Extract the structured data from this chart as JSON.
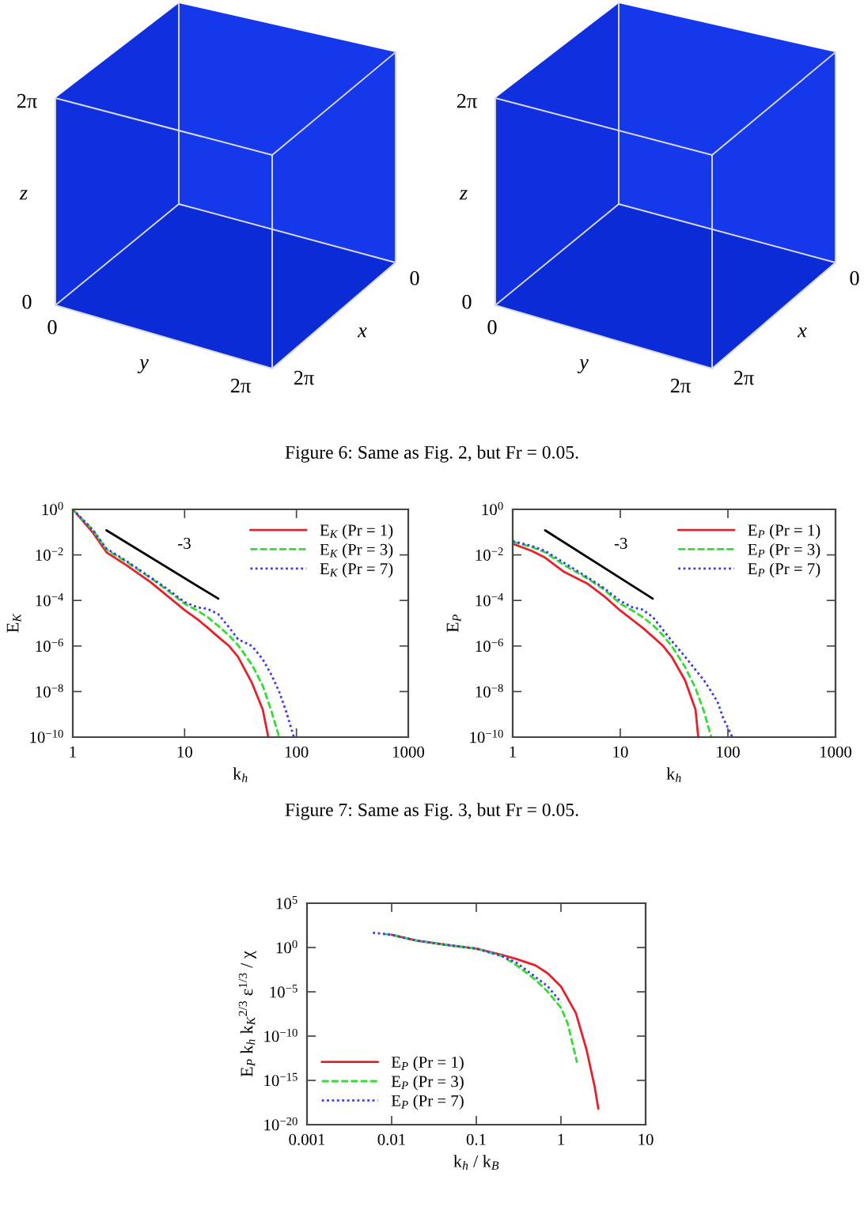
{
  "chart_data": [
    {
      "type": "other",
      "annotations": [
        "2π",
        "z",
        "0",
        "0",
        "y",
        "2π",
        "2π",
        "x",
        "0"
      ]
    },
    {
      "type": "other",
      "annotations": [
        "2π",
        "z",
        "0",
        "0",
        "y",
        "2π",
        "2π",
        "x",
        "0",
        "Figure 6: Same as Fig. 2, but Fr = 0.05."
      ]
    },
    {
      "type": "line",
      "log": "xy",
      "xlabel": "k$_{h}$",
      "ylabel": "E$_{K}$",
      "legend": "top right",
      "xlim": [
        1,
        1000
      ],
      "xticks": [
        1,
        10,
        100,
        1000
      ],
      "ylim": [
        1e-10,
        1
      ],
      "yticks": [
        {
          "value": 1,
          "label": "10$^{0}$"
        },
        {
          "value": 0.01,
          "label": "10$^{−2}$"
        },
        {
          "value": 0.0001,
          "label": "10$^{−4}$"
        },
        {
          "value": 1e-06,
          "label": "10$^{−6}$"
        },
        {
          "value": 1e-08,
          "label": "10$^{−8}$"
        },
        {
          "value": 1e-10,
          "label": "10$^{−10}$"
        }
      ],
      "series": [
        {
          "name": "E$_{K}$ (Pr = 1)",
          "color": "#e8202a",
          "line_style": "solid",
          "x": [
            1,
            1.5,
            2,
            3,
            5,
            7,
            10,
            13,
            16,
            20,
            25,
            30,
            40,
            50,
            56
          ],
          "values": [
            1,
            0.1,
            0.013,
            0.0036,
            0.00062,
            0.00016,
            3.8e-05,
            1.5e-05,
            6.5e-06,
            2.5e-06,
            1e-06,
            3.4e-07,
            2.4e-08,
            1.6e-09,
            1e-10
          ]
        },
        {
          "name": "E$_{K}$ (Pr = 3)",
          "color": "#33dd33",
          "line_style": "dashed",
          "x": [
            1,
            1.5,
            2,
            3,
            5,
            7,
            10,
            13,
            16,
            20,
            25,
            30,
            40,
            50,
            60,
            70
          ],
          "values": [
            1,
            0.13,
            0.017,
            0.005,
            0.00095,
            0.00028,
            7.2e-05,
            3.6e-05,
            1.9e-05,
            7.6e-06,
            2.9e-06,
            1.1e-06,
            1.5e-07,
            1.8e-08,
            1.3e-09,
            1e-10
          ]
        },
        {
          "name": "E$_{K}$ (Pr = 7)",
          "color": "#3a3aee",
          "line_style": "dotted",
          "x": [
            1,
            1.5,
            2,
            3,
            5,
            7,
            10,
            13,
            16,
            20,
            25,
            30,
            40,
            50,
            60,
            70,
            80,
            95
          ],
          "values": [
            1,
            0.13,
            0.019,
            0.0055,
            0.001,
            0.00032,
            8.5e-05,
            5e-05,
            4.3e-05,
            2.5e-05,
            6.5e-06,
            2e-06,
            1e-06,
            2.6e-07,
            5.2e-08,
            1e-08,
            1.6e-09,
            1e-10
          ]
        },
        {
          "color": "#000000",
          "line_style": "solid",
          "x": [
            2,
            20
          ],
          "values": [
            0.12,
            0.00012
          ]
        }
      ],
      "annotations": [
        "-3",
        "Figure 7: Same as Fig. 3, but Fr = 0.05."
      ]
    },
    {
      "type": "line",
      "log": "xy",
      "xlabel": "k$_{h}$",
      "ylabel": "E$_{P}$",
      "legend": "top right",
      "xlim": [
        1,
        1000
      ],
      "xticks": [
        1,
        10,
        100,
        1000
      ],
      "ylim": [
        1e-10,
        1
      ],
      "yticks": [
        {
          "value": 1,
          "label": "10$^{0}$"
        },
        {
          "value": 0.01,
          "label": "10$^{−2}$"
        },
        {
          "value": 0.0001,
          "label": "10$^{−4}$"
        },
        {
          "value": 1e-06,
          "label": "10$^{−6}$"
        },
        {
          "value": 1e-08,
          "label": "10$^{−8}$"
        },
        {
          "value": 1e-10,
          "label": "10$^{−10}$"
        }
      ],
      "series": [
        {
          "name": "E$_{P}$ (Pr = 1)",
          "color": "#e8202a",
          "line_style": "solid",
          "x": [
            1,
            1.5,
            2,
            3,
            5,
            7,
            10,
            13,
            16,
            20,
            25,
            30,
            40,
            50,
            53
          ],
          "values": [
            0.031,
            0.015,
            0.0076,
            0.0018,
            0.00053,
            0.00016,
            3.6e-05,
            1.4e-05,
            6.5e-06,
            2.6e-06,
            1e-06,
            3.4e-07,
            3.1e-08,
            1.6e-09,
            1e-10
          ]
        },
        {
          "name": "E$_{P}$ (Pr = 3)",
          "color": "#33dd33",
          "line_style": "dashed",
          "x": [
            1,
            1.5,
            2,
            3,
            5,
            7,
            10,
            13,
            16,
            20,
            25,
            30,
            40,
            50,
            60,
            70
          ],
          "values": [
            0.038,
            0.022,
            0.013,
            0.0036,
            0.0009,
            0.00031,
            7.2e-05,
            3.6e-05,
            1.9e-05,
            8.5e-06,
            2.9e-06,
            1e-06,
            1.2e-07,
            1.4e-08,
            1.3e-09,
            1e-10
          ]
        },
        {
          "name": "E$_{P}$ (Pr = 7)",
          "color": "#3a3aee",
          "line_style": "dotted",
          "x": [
            1,
            1.5,
            2,
            3,
            5,
            7,
            10,
            13,
            16,
            20,
            25,
            30,
            40,
            50,
            60,
            70,
            80,
            90,
            110
          ],
          "values": [
            0.04,
            0.025,
            0.015,
            0.0045,
            0.001,
            0.00036,
            9.5e-05,
            5e-05,
            4e-05,
            1.9e-05,
            5e-06,
            1.7e-06,
            3.4e-07,
            9e-08,
            3.1e-08,
            1e-08,
            3.6e-09,
            7.2e-10,
            1e-10
          ]
        },
        {
          "color": "#000000",
          "line_style": "solid",
          "x": [
            2,
            20
          ],
          "values": [
            0.12,
            0.00012
          ]
        }
      ],
      "annotations": [
        "-3"
      ]
    },
    {
      "type": "line",
      "log": "xy",
      "xlabel": "k$_{h}$ / k$_{B}$",
      "ylabel": "E$_{P}$ k$_{h}$ k$_{K}$$^{2/3}$ ε$^{1/3}$ / χ",
      "legend": "bottom left",
      "xlim": [
        0.001,
        10
      ],
      "xticks": [
        0.001,
        0.01,
        0.1,
        1,
        10
      ],
      "ylim": [
        1e-20,
        100000
      ],
      "yticks": [
        {
          "value": 100000,
          "label": "10$^{5}$"
        },
        {
          "value": 1,
          "label": "10$^{0}$"
        },
        {
          "value": 1e-05,
          "label": "10$^{−5}$"
        },
        {
          "value": 1e-10,
          "label": "10$^{−10}$"
        },
        {
          "value": 1e-15,
          "label": "10$^{−15}$"
        },
        {
          "value": 1e-20,
          "label": "10$^{−20}$"
        }
      ],
      "series": [
        {
          "name": "E$_{P}$ (Pr = 1)",
          "color": "#e8202a",
          "line_style": "solid",
          "x": [
            0.01,
            0.02,
            0.05,
            0.1,
            0.2,
            0.3,
            0.5,
            0.7,
            1,
            1.5,
            2,
            2.5,
            2.76
          ],
          "values": [
            27,
            5.9,
            1.7,
            0.76,
            0.15,
            0.049,
            0.0095,
            0.0012,
            4e-05,
            4e-08,
            3.2e-12,
            2e-16,
            6.3e-19
          ]
        },
        {
          "name": "E$_{P}$ (Pr = 3)",
          "color": "#33dd33",
          "line_style": "dashed",
          "x": [
            0.008,
            0.01,
            0.02,
            0.05,
            0.1,
            0.2,
            0.3,
            0.5,
            0.7,
            1,
            1.2,
            1.55
          ],
          "values": [
            35,
            27,
            5.9,
            1.7,
            0.76,
            0.11,
            0.0095,
            0.00023,
            1e-05,
            1.6e-07,
            2.7e-09,
            1e-13
          ]
        },
        {
          "name": "E$_{P}$ (Pr = 7)",
          "color": "#3a3aee",
          "line_style": "dotted",
          "x": [
            0.006,
            0.01,
            0.02,
            0.05,
            0.1,
            0.2,
            0.3,
            0.5,
            0.7,
            1
          ],
          "values": [
            47,
            27,
            5.9,
            1.7,
            0.76,
            0.11,
            0.019,
            0.00047,
            4e-05,
            6.5e-07
          ]
        }
      ]
    }
  ]
}
